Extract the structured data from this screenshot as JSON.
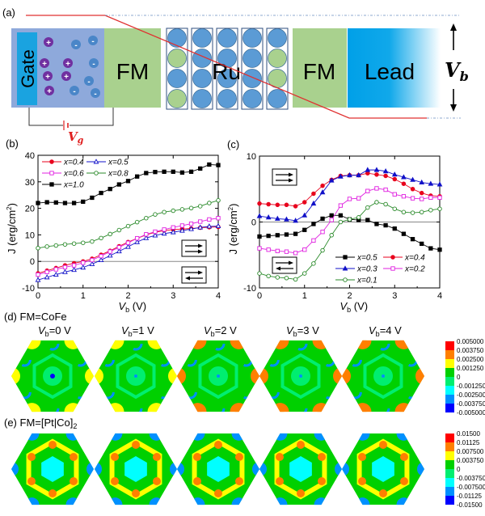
{
  "panel_a": {
    "label": "(a)",
    "gate": "Gate",
    "fm_left": "FM",
    "ru": "Ru",
    "fm_right": "FM",
    "lead": "Lead",
    "vb_symbol": "V",
    "vb_sub": "b",
    "vg_symbol": "V",
    "vg_sub": "g",
    "ion_plus": "+",
    "ion_minus": "-",
    "colors": {
      "gate": "#1aa3e0",
      "gate_region": "#8ea9db",
      "fm": "#a9d18e",
      "ru_blue": "#5b9bd5",
      "ru_green": "#a9d18e",
      "potential_line": "#e03030",
      "vg": "#e02020"
    }
  },
  "chart_data": [
    {
      "id": "b",
      "panel_label": "(b)",
      "type": "line",
      "xlabel": "V",
      "xlabel_sub": "b",
      "xlabel_unit": " (V)",
      "ylabel": "J (erg/cm",
      "ylabel_sup": "2",
      "ylabel_end": ")",
      "xlim": [
        0,
        4
      ],
      "ylim": [
        -10,
        40
      ],
      "xticks": [
        "0",
        "1",
        "2",
        "3",
        "4"
      ],
      "yticks": [
        "-10",
        "0",
        "10",
        "20",
        "30",
        "40"
      ],
      "x": [
        0,
        0.2,
        0.4,
        0.6,
        0.8,
        1.0,
        1.2,
        1.4,
        1.6,
        1.8,
        2.0,
        2.2,
        2.4,
        2.6,
        2.8,
        3.0,
        3.2,
        3.4,
        3.6,
        3.8,
        4.0
      ],
      "legend_position": "top-left",
      "series": [
        {
          "name": "x=0.4",
          "color": "#e8001c",
          "marker": "circle",
          "filled": true,
          "values": [
            -4.5,
            -3.5,
            -2.5,
            -1.5,
            -0.7,
            0,
            1,
            2.5,
            4,
            5.7,
            7.3,
            8.7,
            10,
            11,
            11.6,
            12,
            12.2,
            12.4,
            12.7,
            12.9,
            13
          ]
        },
        {
          "name": "x=0.5",
          "color": "#1010c8",
          "marker": "triangle",
          "filled": false,
          "values": [
            -7,
            -6,
            -5,
            -4,
            -3.2,
            -2.3,
            -1,
            0.5,
            2.2,
            3.8,
            5.5,
            7.3,
            8.8,
            9.8,
            10.5,
            11,
            11.6,
            12.2,
            12.8,
            13.2,
            13.3
          ]
        },
        {
          "name": "x=0.6",
          "color": "#e020e0",
          "marker": "square",
          "filled": false,
          "values": [
            -5,
            -4,
            -3,
            -2.2,
            -1.5,
            -0.5,
            0.5,
            2,
            3.7,
            5.3,
            7,
            8.7,
            10.2,
            11.2,
            12,
            12.8,
            13.5,
            14.2,
            15,
            15.8,
            16.3
          ]
        },
        {
          "name": "x=0.8",
          "color": "#2a8a2a",
          "marker": "circle",
          "filled": false,
          "values": [
            5,
            5.6,
            6,
            6.4,
            6.7,
            7,
            7.5,
            8.8,
            10.3,
            11.8,
            13.3,
            14.8,
            16.3,
            17.7,
            18.6,
            19.1,
            19.6,
            20.1,
            20.8,
            22,
            23
          ]
        },
        {
          "name": "x=1.0",
          "color": "#000000",
          "marker": "square",
          "filled": true,
          "values": [
            22,
            22.3,
            22.2,
            22,
            22,
            22.5,
            24,
            25.8,
            27.3,
            29,
            30.3,
            32,
            33.3,
            33.7,
            33.8,
            33.8,
            33.5,
            33.8,
            35,
            36.5,
            36.3
          ]
        }
      ]
    },
    {
      "id": "c",
      "panel_label": "(c)",
      "type": "line",
      "xlabel": "V",
      "xlabel_sub": "b",
      "xlabel_unit": " (V)",
      "ylabel": "J (erg/cm",
      "ylabel_sup": "2",
      "ylabel_end": ")",
      "xlim": [
        0,
        4
      ],
      "ylim": [
        -10,
        10
      ],
      "xticks": [
        "0",
        "1",
        "2",
        "3",
        "4"
      ],
      "yticks": [
        "-10",
        "0",
        "10"
      ],
      "x": [
        0,
        0.2,
        0.4,
        0.6,
        0.8,
        1.0,
        1.2,
        1.4,
        1.6,
        1.8,
        2.0,
        2.2,
        2.4,
        2.6,
        2.8,
        3.0,
        3.2,
        3.4,
        3.6,
        3.8,
        4.0
      ],
      "legend_position": "bottom-right",
      "series": [
        {
          "name": "x=0.5",
          "color": "#000000",
          "marker": "square",
          "filled": true,
          "values": [
            -2.2,
            -2.1,
            -2,
            -1.9,
            -1.8,
            -1.2,
            -0.3,
            0.5,
            1,
            1,
            0.4,
            0.3,
            0.3,
            -0.3,
            -0.5,
            -1,
            -1.8,
            -2.6,
            -3.3,
            -4,
            -4.2
          ]
        },
        {
          "name": "x=0.4",
          "color": "#e8001c",
          "marker": "circle",
          "filled": true,
          "values": [
            2.8,
            2.7,
            2.6,
            2.6,
            2.4,
            3,
            4.3,
            5.5,
            6.4,
            7,
            7.1,
            7.1,
            7.4,
            7.2,
            7,
            6.5,
            5.8,
            5,
            4.4,
            4,
            3.9
          ]
        },
        {
          "name": "x=0.3",
          "color": "#1010c8",
          "marker": "triangle",
          "filled": true,
          "values": [
            0.9,
            0.7,
            0.5,
            0.4,
            0.2,
            1,
            2.8,
            4.5,
            6.3,
            6.9,
            7.1,
            7.1,
            7.9,
            7.9,
            7.7,
            7.2,
            6.8,
            6.4,
            6,
            5.8,
            5.7
          ]
        },
        {
          "name": "x=0.2",
          "color": "#e020e0",
          "marker": "square",
          "filled": false,
          "values": [
            -4,
            -4.2,
            -4.4,
            -4.5,
            -4.7,
            -4.2,
            -2.8,
            -1.5,
            0.3,
            2.5,
            3.5,
            3.6,
            4.7,
            5.1,
            4.9,
            4.2,
            3.9,
            3.6,
            3.5,
            3.7,
            3.7
          ]
        },
        {
          "name": "x=0.1",
          "color": "#2a8a2a",
          "marker": "circle",
          "filled": false,
          "values": [
            -7.8,
            -8.2,
            -8.4,
            -8.5,
            -8.7,
            -7.8,
            -6.3,
            -4.3,
            -2,
            0,
            0.4,
            0.7,
            2.2,
            3,
            2.7,
            2,
            1.5,
            1.4,
            1.5,
            1.8,
            2
          ]
        }
      ]
    }
  ],
  "panel_d": {
    "label": "(d) FM=CoFe",
    "maps": [
      {
        "vb_prefix": "V",
        "vb_sub": "b",
        "vb_value": "=0 V",
        "corner_level": 2
      },
      {
        "vb_prefix": "V",
        "vb_sub": "b",
        "vb_value": "=1 V",
        "corner_level": 2
      },
      {
        "vb_prefix": "V",
        "vb_sub": "b",
        "vb_value": "=2 V",
        "corner_level": 3
      },
      {
        "vb_prefix": "V",
        "vb_sub": "b",
        "vb_value": "=3 V",
        "corner_level": 3
      },
      {
        "vb_prefix": "V",
        "vb_sub": "b",
        "vb_value": "=4 V",
        "corner_level": 3
      }
    ],
    "colorbar": [
      "0.005000",
      "0.003750",
      "0.002500",
      "0.001250",
      "0",
      "-0.001250",
      "-0.002500",
      "-0.003750",
      "-0.005000"
    ]
  },
  "panel_e": {
    "label": "(e) FM=[Pt|Co]",
    "label_sub": "2",
    "colorbar": [
      "0.01500",
      "0.01125",
      "0.007500",
      "0.003750",
      "0",
      "-0.003750",
      "-0.007500",
      "-0.01125",
      "-0.01500"
    ]
  },
  "colorscale": [
    "#ff0000",
    "#ff7f00",
    "#ffff00",
    "#00d000",
    "#00ee70",
    "#00ffff",
    "#0090ff",
    "#0000ff"
  ]
}
